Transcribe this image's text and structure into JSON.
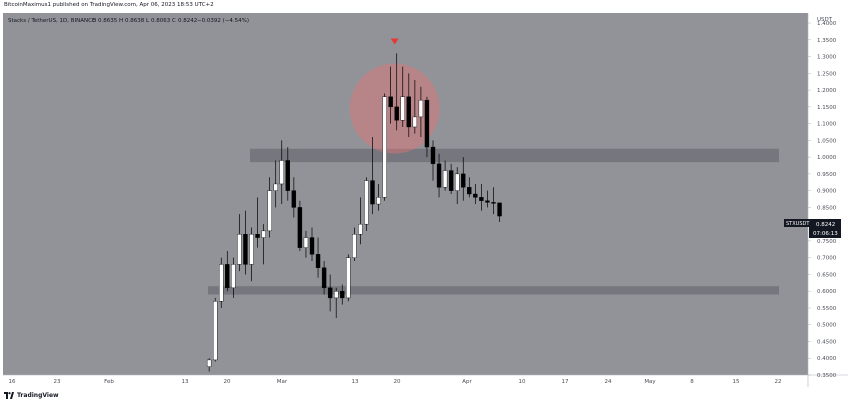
{
  "publisher_line": "BitcoinMaximus1 published on TradingView.com, Apr 06, 2023 18:53 UTC+2",
  "brand": {
    "name": "TradingView"
  },
  "colors": {
    "plot_bg": "#929399",
    "zone": "#5f6168",
    "highlight_circle": "#e57373",
    "marker": "#e53935",
    "bull": "#ffffff",
    "bear": "#000000",
    "price_label_bg": "#131722"
  },
  "chart_data": {
    "type": "candlestick",
    "symbol_legend": "Stacks / TetherUS, 1D, BINANCE",
    "ohlc_legend": {
      "O": "0.8635",
      "H": "0.8638",
      "L": "0.8063",
      "C": "0.8242",
      "change": "−0.0392 (−4.54%)"
    },
    "y_axis": {
      "title": "USDT",
      "range": [
        0.35,
        1.43
      ],
      "scale": "linear",
      "ticks": [
        "1.4000",
        "1.3500",
        "1.3000",
        "1.2500",
        "1.2000",
        "1.1500",
        "1.1000",
        "1.0500",
        "1.0000",
        "0.9500",
        "0.9000",
        "0.8500",
        "0.8000",
        "0.7500",
        "0.7000",
        "0.6500",
        "0.6000",
        "0.5500",
        "0.5000",
        "0.4500",
        "0.4000",
        "0.3500"
      ]
    },
    "x_axis": {
      "ticks": [
        "16",
        "23",
        "Feb",
        "13",
        "20",
        "Mar",
        "13",
        "20",
        "Apr",
        "10",
        "17",
        "24",
        "May",
        "8",
        "15",
        "22"
      ]
    },
    "price_label": {
      "symbol": "STXUSDT",
      "price": "0.8242",
      "countdown": "07:06:13"
    },
    "horizontal_zones": [
      {
        "low": 0.985,
        "high": 1.025
      },
      {
        "low": 0.59,
        "high": 0.615
      }
    ],
    "highlight_circle": {
      "center_date": "Mar 20",
      "center_price": 1.145
    },
    "top_marker": {
      "date": "Mar 20",
      "price": 1.33
    },
    "candles": [
      {
        "date": "Feb 17",
        "o": 0.375,
        "h": 0.4,
        "l": 0.36,
        "c": 0.395
      },
      {
        "date": "Feb 18",
        "o": 0.395,
        "h": 0.58,
        "l": 0.39,
        "c": 0.57
      },
      {
        "date": "Feb 19",
        "o": 0.57,
        "h": 0.7,
        "l": 0.55,
        "c": 0.68
      },
      {
        "date": "Feb 20",
        "o": 0.68,
        "h": 0.72,
        "l": 0.6,
        "c": 0.61
      },
      {
        "date": "Feb 21",
        "o": 0.61,
        "h": 0.7,
        "l": 0.58,
        "c": 0.68
      },
      {
        "date": "Feb 22",
        "o": 0.68,
        "h": 0.83,
        "l": 0.66,
        "c": 0.77
      },
      {
        "date": "Feb 23",
        "o": 0.77,
        "h": 0.84,
        "l": 0.65,
        "c": 0.68
      },
      {
        "date": "Feb 24",
        "o": 0.68,
        "h": 0.79,
        "l": 0.63,
        "c": 0.77
      },
      {
        "date": "Feb 25",
        "o": 0.77,
        "h": 0.88,
        "l": 0.73,
        "c": 0.76
      },
      {
        "date": "Feb 26",
        "o": 0.76,
        "h": 0.8,
        "l": 0.68,
        "c": 0.78
      },
      {
        "date": "Feb 27",
        "o": 0.78,
        "h": 0.94,
        "l": 0.76,
        "c": 0.9
      },
      {
        "date": "Feb 28",
        "o": 0.9,
        "h": 0.99,
        "l": 0.85,
        "c": 0.92
      },
      {
        "date": "Mar 01",
        "o": 0.92,
        "h": 1.05,
        "l": 0.86,
        "c": 0.99
      },
      {
        "date": "Mar 02",
        "o": 0.99,
        "h": 1.03,
        "l": 0.87,
        "c": 0.9
      },
      {
        "date": "Mar 03",
        "o": 0.9,
        "h": 0.94,
        "l": 0.82,
        "c": 0.85
      },
      {
        "date": "Mar 04",
        "o": 0.85,
        "h": 0.87,
        "l": 0.72,
        "c": 0.73
      },
      {
        "date": "Mar 05",
        "o": 0.73,
        "h": 0.78,
        "l": 0.7,
        "c": 0.76
      },
      {
        "date": "Mar 06",
        "o": 0.76,
        "h": 0.79,
        "l": 0.69,
        "c": 0.71
      },
      {
        "date": "Mar 07",
        "o": 0.71,
        "h": 0.76,
        "l": 0.64,
        "c": 0.67
      },
      {
        "date": "Mar 08",
        "o": 0.67,
        "h": 0.69,
        "l": 0.59,
        "c": 0.61
      },
      {
        "date": "Mar 09",
        "o": 0.61,
        "h": 0.65,
        "l": 0.54,
        "c": 0.58
      },
      {
        "date": "Mar 10",
        "o": 0.58,
        "h": 0.61,
        "l": 0.52,
        "c": 0.6
      },
      {
        "date": "Mar 11",
        "o": 0.6,
        "h": 0.62,
        "l": 0.56,
        "c": 0.58
      },
      {
        "date": "Mar 12",
        "o": 0.58,
        "h": 0.71,
        "l": 0.57,
        "c": 0.7
      },
      {
        "date": "Mar 13",
        "o": 0.7,
        "h": 0.79,
        "l": 0.69,
        "c": 0.77
      },
      {
        "date": "Mar 14",
        "o": 0.77,
        "h": 0.88,
        "l": 0.74,
        "c": 0.8
      },
      {
        "date": "Mar 15",
        "o": 0.8,
        "h": 0.94,
        "l": 0.78,
        "c": 0.93
      },
      {
        "date": "Mar 16",
        "o": 0.93,
        "h": 1.06,
        "l": 0.83,
        "c": 0.86
      },
      {
        "date": "Mar 17",
        "o": 0.86,
        "h": 0.92,
        "l": 0.84,
        "c": 0.88
      },
      {
        "date": "Mar 18",
        "o": 0.88,
        "h": 1.19,
        "l": 0.87,
        "c": 1.18
      },
      {
        "date": "Mar 19",
        "o": 1.18,
        "h": 1.27,
        "l": 1.1,
        "c": 1.15
      },
      {
        "date": "Mar 20",
        "o": 1.15,
        "h": 1.31,
        "l": 1.08,
        "c": 1.11
      },
      {
        "date": "Mar 21",
        "o": 1.11,
        "h": 1.27,
        "l": 1.09,
        "c": 1.18
      },
      {
        "date": "Mar 22",
        "o": 1.18,
        "h": 1.25,
        "l": 1.06,
        "c": 1.09
      },
      {
        "date": "Mar 23",
        "o": 1.09,
        "h": 1.23,
        "l": 1.07,
        "c": 1.12
      },
      {
        "date": "Mar 24",
        "o": 1.12,
        "h": 1.21,
        "l": 1.06,
        "c": 1.17
      },
      {
        "date": "Mar 25",
        "o": 1.17,
        "h": 1.18,
        "l": 1.0,
        "c": 1.03
      },
      {
        "date": "Mar 26",
        "o": 1.03,
        "h": 1.05,
        "l": 0.93,
        "c": 0.98
      },
      {
        "date": "Mar 27",
        "o": 0.98,
        "h": 1.01,
        "l": 0.88,
        "c": 0.91
      },
      {
        "date": "Mar 28",
        "o": 0.91,
        "h": 0.99,
        "l": 0.9,
        "c": 0.96
      },
      {
        "date": "Mar 29",
        "o": 0.96,
        "h": 0.98,
        "l": 0.89,
        "c": 0.9
      },
      {
        "date": "Mar 30",
        "o": 0.9,
        "h": 0.97,
        "l": 0.86,
        "c": 0.95
      },
      {
        "date": "Mar 31",
        "o": 0.95,
        "h": 1.0,
        "l": 0.87,
        "c": 0.91
      },
      {
        "date": "Apr 01",
        "o": 0.91,
        "h": 0.94,
        "l": 0.88,
        "c": 0.89
      },
      {
        "date": "Apr 02",
        "o": 0.89,
        "h": 0.92,
        "l": 0.86,
        "c": 0.88
      },
      {
        "date": "Apr 03",
        "o": 0.88,
        "h": 0.92,
        "l": 0.84,
        "c": 0.87
      },
      {
        "date": "Apr 04",
        "o": 0.87,
        "h": 0.9,
        "l": 0.85,
        "c": 0.865
      },
      {
        "date": "Apr 05",
        "o": 0.865,
        "h": 0.91,
        "l": 0.83,
        "c": 0.8635
      },
      {
        "date": "Apr 06",
        "o": 0.8635,
        "h": 0.8638,
        "l": 0.8063,
        "c": 0.8242
      }
    ]
  }
}
